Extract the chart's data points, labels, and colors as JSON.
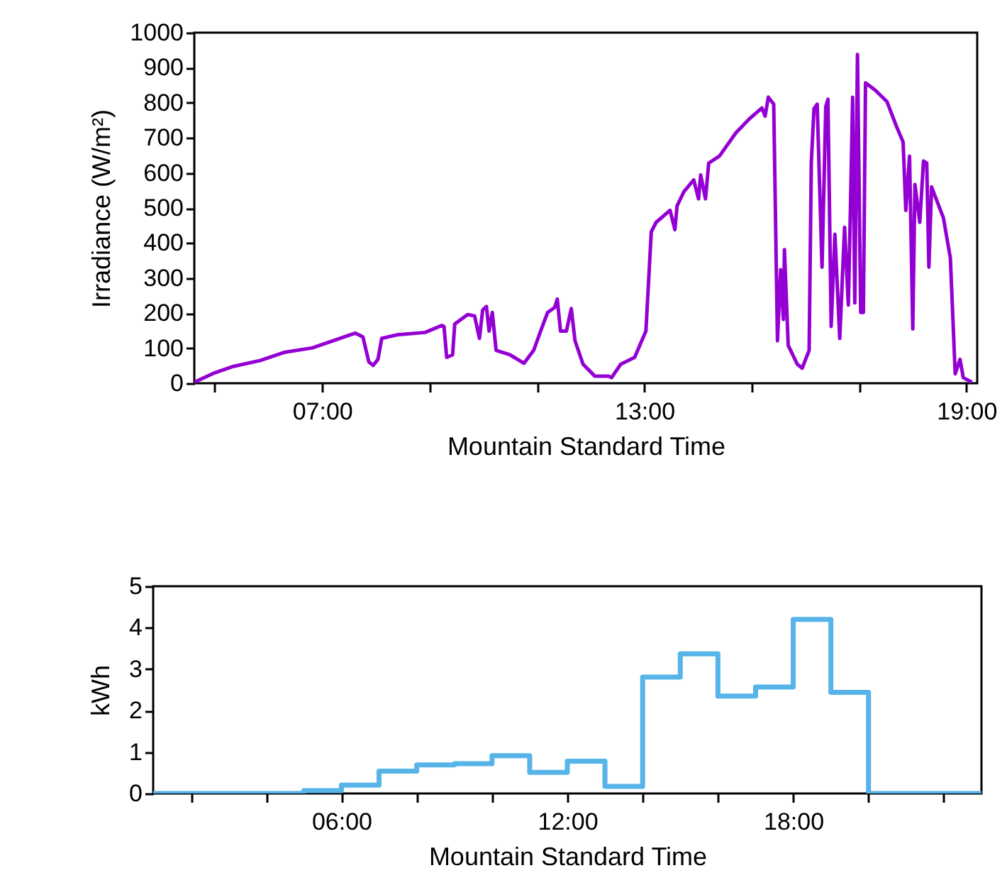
{
  "chart_data": [
    {
      "type": "line",
      "xlabel": "Mountain Standard Time",
      "ylabel": "Irradiance (W/m²)",
      "color": "#9400d3",
      "x": [
        4.62,
        4.97,
        5.32,
        5.85,
        6.29,
        6.82,
        7.52,
        7.62,
        7.76,
        7.87,
        7.95,
        8.04,
        8.11,
        8.39,
        8.92,
        9.23,
        9.27,
        9.32,
        9.43,
        9.47,
        9.71,
        9.84,
        9.93,
        9.99,
        10.06,
        10.11,
        10.17,
        10.24,
        10.5,
        10.76,
        10.94,
        11.07,
        11.2,
        11.33,
        11.38,
        11.44,
        11.55,
        11.64,
        11.71,
        11.86,
        12.08,
        12.34,
        12.39,
        12.56,
        12.82,
        13.03,
        13.13,
        13.22,
        13.48,
        13.57,
        13.61,
        13.74,
        13.92,
        14.01,
        14.05,
        14.14,
        14.2,
        14.4,
        14.71,
        14.97,
        15.19,
        15.25,
        15.31,
        15.41,
        15.48,
        15.54,
        15.59,
        15.61,
        15.68,
        15.85,
        15.94,
        16.07,
        16.11,
        16.16,
        16.22,
        16.31,
        16.38,
        16.42,
        16.48,
        16.55,
        16.64,
        16.73,
        16.8,
        16.84,
        16.88,
        16.92,
        16.97,
        17.03,
        17.08,
        17.12,
        17.3,
        17.52,
        17.69,
        17.82,
        17.87,
        17.94,
        18.0,
        18.04,
        18.13,
        18.2,
        18.26,
        18.3,
        18.35,
        18.57,
        18.7,
        18.79,
        18.88,
        18.94,
        19.1
      ],
      "values": [
        3,
        28,
        47,
        65,
        88,
        101,
        138,
        143,
        132,
        61,
        51,
        68,
        128,
        138,
        145,
        165,
        162,
        74,
        81,
        169,
        196,
        192,
        128,
        209,
        219,
        149,
        202,
        94,
        81,
        57,
        94,
        149,
        202,
        216,
        240,
        149,
        149,
        213,
        121,
        54,
        20,
        20,
        16,
        54,
        74,
        149,
        432,
        459,
        493,
        438,
        506,
        547,
        580,
        526,
        594,
        526,
        628,
        648,
        715,
        756,
        785,
        762,
        816,
        796,
        121,
        324,
        182,
        381,
        108,
        54,
        43,
        94,
        628,
        783,
        796,
        331,
        789,
        810,
        162,
        425,
        128,
        445,
        223,
        506,
        816,
        229,
        938,
        202,
        202,
        857,
        836,
        803,
        735,
        688,
        493,
        648,
        155,
        567,
        459,
        634,
        628,
        331,
        560,
        472,
        357,
        27,
        68,
        16,
        3
      ],
      "xlim": [
        4.62,
        19.2
      ],
      "xticks": [
        {
          "value": 5,
          "label": null
        },
        {
          "value": 7,
          "label": "07:00"
        },
        {
          "value": 9,
          "label": null
        },
        {
          "value": 11,
          "label": null
        },
        {
          "value": 13,
          "label": "13:00"
        },
        {
          "value": 15,
          "label": null
        },
        {
          "value": 17,
          "label": null
        },
        {
          "value": 19,
          "label": "19:00"
        }
      ],
      "ylim": [
        0,
        1000
      ],
      "yticks": [
        0,
        100,
        200,
        300,
        400,
        500,
        600,
        700,
        800,
        900,
        1000
      ]
    },
    {
      "type": "step",
      "xlabel": "Mountain Standard Time",
      "ylabel": "kWh",
      "color": "#56b4e9",
      "x": [
        1,
        2,
        3,
        4,
        5,
        6,
        7,
        8,
        9,
        10,
        11,
        12,
        13,
        14,
        15,
        16,
        17,
        18,
        19,
        20,
        21,
        22,
        23
      ],
      "values": [
        0,
        0,
        0,
        0,
        0.07,
        0.2,
        0.54,
        0.69,
        0.72,
        0.91,
        0.51,
        0.78,
        0.17,
        2.81,
        3.37,
        2.35,
        2.57,
        4.2,
        2.44,
        0,
        0,
        0,
        0
      ],
      "xlim": [
        1,
        23
      ],
      "xticks": [
        {
          "value": 2,
          "label": null
        },
        {
          "value": 4,
          "label": null
        },
        {
          "value": 6,
          "label": "06:00"
        },
        {
          "value": 8,
          "label": null
        },
        {
          "value": 10,
          "label": null
        },
        {
          "value": 12,
          "label": "12:00"
        },
        {
          "value": 14,
          "label": null
        },
        {
          "value": 16,
          "label": null
        },
        {
          "value": 18,
          "label": "18:00"
        },
        {
          "value": 20,
          "label": null
        },
        {
          "value": 22,
          "label": null
        }
      ],
      "ylim": [
        0,
        5
      ],
      "yticks": [
        0,
        1,
        2,
        3,
        4,
        5
      ]
    }
  ]
}
